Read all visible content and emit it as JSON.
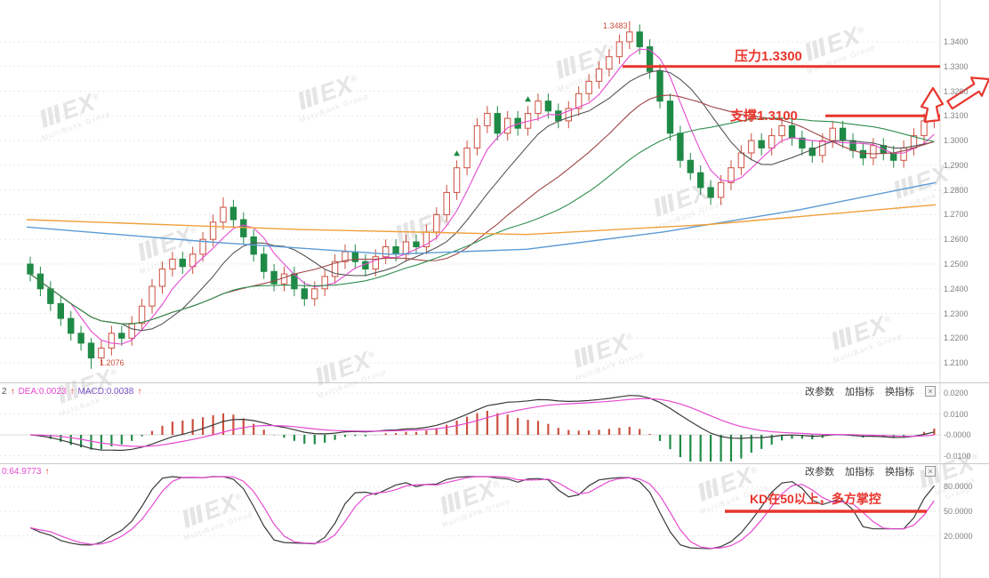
{
  "colors": {
    "up": "#cc4f3f",
    "down": "#1f8a46",
    "annotation": "#e8362e",
    "dif": "#3a3a3a",
    "dea": "#e649d1",
    "hist_pos": "#cc4f3f",
    "hist_neg": "#1f8a46",
    "axis_text": "#808080",
    "grid": "#e8e8e8",
    "button_text": "#3a3a3a"
  },
  "watermark": {
    "logo": "ⅢEX",
    "registered": "®",
    "subtext": "MultiBank Group"
  },
  "ui": {
    "buttons": {
      "change_params": "改参数",
      "add_indicator": "加指标",
      "switch_indicator": "换指标"
    },
    "close_icon": "×",
    "up_arrow": "↑"
  },
  "indicators": {
    "macd": {
      "prefix": "2",
      "dea_label": "DEA:0.0023",
      "macd_label": "MACD:0.0038"
    },
    "kd": {
      "label": "0:64.9773"
    }
  },
  "annotations": {
    "resistance": "压力1.3300",
    "support": "支撑1.3100",
    "kd_note": "KD在50以上，多方掌控",
    "peak": "1.3483",
    "low": "1.2076"
  },
  "chart_data": [
    {
      "type": "candlestick",
      "title": "",
      "ylim": [
        1.2076,
        1.3483
      ],
      "resistance_level": 1.33,
      "support_level": 1.31,
      "price_ticks": [
        "1.3400",
        "1.3300",
        "1.3200",
        "1.3100",
        "1.3000",
        "1.2900",
        "1.2800",
        "1.2700",
        "1.2600",
        "1.2500",
        "1.2400",
        "1.2300",
        "1.2200",
        "1.2100"
      ],
      "candles": [
        [
          1.25,
          1.253,
          1.243,
          1.246
        ],
        [
          1.246,
          1.249,
          1.237,
          1.24
        ],
        [
          1.24,
          1.243,
          1.231,
          1.234
        ],
        [
          1.234,
          1.237,
          1.225,
          1.228
        ],
        [
          1.228,
          1.231,
          1.219,
          1.222
        ],
        [
          1.222,
          1.225,
          1.215,
          1.218
        ],
        [
          1.218,
          1.22,
          1.2076,
          1.212
        ],
        [
          1.212,
          1.219,
          1.209,
          1.216
        ],
        [
          1.216,
          1.225,
          1.213,
          1.222
        ],
        [
          1.222,
          1.225,
          1.217,
          1.22
        ],
        [
          1.22,
          1.229,
          1.217,
          1.226
        ],
        [
          1.226,
          1.236,
          1.223,
          1.233
        ],
        [
          1.233,
          1.244,
          1.23,
          1.241
        ],
        [
          1.241,
          1.251,
          1.238,
          1.248
        ],
        [
          1.248,
          1.255,
          1.245,
          1.252
        ],
        [
          1.252,
          1.255,
          1.246,
          1.249
        ],
        [
          1.249,
          1.257,
          1.246,
          1.254
        ],
        [
          1.254,
          1.263,
          1.251,
          1.26
        ],
        [
          1.26,
          1.27,
          1.257,
          1.267
        ],
        [
          1.267,
          1.277,
          1.264,
          1.273
        ],
        [
          1.273,
          1.276,
          1.265,
          1.268
        ],
        [
          1.268,
          1.271,
          1.258,
          1.261
        ],
        [
          1.261,
          1.264,
          1.251,
          1.254
        ],
        [
          1.254,
          1.257,
          1.244,
          1.247
        ],
        [
          1.247,
          1.25,
          1.239,
          1.242
        ],
        [
          1.242,
          1.249,
          1.239,
          1.246
        ],
        [
          1.246,
          1.249,
          1.237,
          1.24
        ],
        [
          1.24,
          1.243,
          1.233,
          1.236
        ],
        [
          1.236,
          1.243,
          1.233,
          1.24
        ],
        [
          1.24,
          1.248,
          1.237,
          1.245
        ],
        [
          1.245,
          1.254,
          1.242,
          1.251
        ],
        [
          1.251,
          1.258,
          1.248,
          1.255
        ],
        [
          1.255,
          1.258,
          1.248,
          1.251
        ],
        [
          1.251,
          1.254,
          1.245,
          1.248
        ],
        [
          1.248,
          1.256,
          1.245,
          1.253
        ],
        [
          1.253,
          1.26,
          1.25,
          1.257
        ],
        [
          1.257,
          1.26,
          1.251,
          1.254
        ],
        [
          1.254,
          1.262,
          1.251,
          1.259
        ],
        [
          1.259,
          1.262,
          1.254,
          1.257
        ],
        [
          1.257,
          1.266,
          1.254,
          1.263
        ],
        [
          1.263,
          1.273,
          1.26,
          1.27
        ],
        [
          1.27,
          1.282,
          1.267,
          1.279
        ],
        [
          1.279,
          1.292,
          1.276,
          1.289
        ],
        [
          1.289,
          1.3,
          1.286,
          1.297
        ],
        [
          1.297,
          1.309,
          1.294,
          1.306
        ],
        [
          1.306,
          1.314,
          1.303,
          1.311
        ],
        [
          1.311,
          1.314,
          1.3,
          1.303
        ],
        [
          1.303,
          1.312,
          1.3,
          1.309
        ],
        [
          1.309,
          1.312,
          1.302,
          1.305
        ],
        [
          1.305,
          1.314,
          1.302,
          1.311
        ],
        [
          1.311,
          1.319,
          1.308,
          1.316
        ],
        [
          1.316,
          1.319,
          1.309,
          1.312
        ],
        [
          1.312,
          1.315,
          1.305,
          1.308
        ],
        [
          1.308,
          1.316,
          1.305,
          1.313
        ],
        [
          1.313,
          1.322,
          1.31,
          1.319
        ],
        [
          1.319,
          1.327,
          1.316,
          1.324
        ],
        [
          1.324,
          1.332,
          1.321,
          1.329
        ],
        [
          1.329,
          1.337,
          1.326,
          1.334
        ],
        [
          1.334,
          1.343,
          1.331,
          1.34
        ],
        [
          1.34,
          1.3483,
          1.337,
          1.344
        ],
        [
          1.344,
          1.347,
          1.335,
          1.338
        ],
        [
          1.338,
          1.341,
          1.325,
          1.328
        ],
        [
          1.328,
          1.331,
          1.313,
          1.316
        ],
        [
          1.316,
          1.319,
          1.3,
          1.303
        ],
        [
          1.303,
          1.306,
          1.289,
          1.292
        ],
        [
          1.292,
          1.295,
          1.284,
          1.287
        ],
        [
          1.287,
          1.29,
          1.278,
          1.281
        ],
        [
          1.281,
          1.284,
          1.274,
          1.277
        ],
        [
          1.277,
          1.286,
          1.274,
          1.283
        ],
        [
          1.283,
          1.292,
          1.28,
          1.289
        ],
        [
          1.289,
          1.298,
          1.286,
          1.295
        ],
        [
          1.295,
          1.303,
          1.292,
          1.3
        ],
        [
          1.3,
          1.303,
          1.294,
          1.297
        ],
        [
          1.297,
          1.305,
          1.294,
          1.302
        ],
        [
          1.302,
          1.309,
          1.299,
          1.306
        ],
        [
          1.306,
          1.309,
          1.298,
          1.301
        ],
        [
          1.301,
          1.304,
          1.294,
          1.297
        ],
        [
          1.297,
          1.3,
          1.291,
          1.294
        ],
        [
          1.294,
          1.303,
          1.291,
          1.3
        ],
        [
          1.3,
          1.308,
          1.297,
          1.305
        ],
        [
          1.305,
          1.308,
          1.297,
          1.3
        ],
        [
          1.3,
          1.303,
          1.293,
          1.296
        ],
        [
          1.296,
          1.299,
          1.29,
          1.293
        ],
        [
          1.293,
          1.301,
          1.29,
          1.298
        ],
        [
          1.298,
          1.301,
          1.292,
          1.295
        ],
        [
          1.295,
          1.298,
          1.289,
          1.292
        ],
        [
          1.292,
          1.3,
          1.289,
          1.297
        ],
        [
          1.297,
          1.305,
          1.294,
          1.302
        ],
        [
          1.302,
          1.311,
          1.299,
          1.308
        ],
        [
          1.308,
          1.317,
          1.305,
          1.314
        ]
      ],
      "ma_series": [
        {
          "name": "MA5",
          "period": 5,
          "color": "#e649d1"
        },
        {
          "name": "MA10",
          "period": 10,
          "color": "#555555"
        },
        {
          "name": "MA20",
          "period": 20,
          "color": "#9e4545"
        },
        {
          "name": "MA30",
          "period": 30,
          "color": "#2f8f4f"
        }
      ],
      "overlay_lines": [
        {
          "name": "long-ma-blue",
          "color": "#5b9bd5",
          "points": [
            [
              0,
              1.265
            ],
            [
              0.2,
              1.259
            ],
            [
              0.4,
              1.254
            ],
            [
              0.55,
              1.256
            ],
            [
              0.7,
              1.263
            ],
            [
              0.85,
              1.272
            ],
            [
              1,
              1.283
            ]
          ]
        },
        {
          "name": "long-ma-orange",
          "color": "#f0a03c",
          "points": [
            [
              0,
              1.268
            ],
            [
              0.3,
              1.264
            ],
            [
              0.55,
              1.262
            ],
            [
              0.75,
              1.266
            ],
            [
              1,
              1.274
            ]
          ]
        }
      ],
      "markers": [
        {
          "index": 42,
          "type": "up-triangle",
          "color": "#1f8a46"
        },
        {
          "index": 49,
          "type": "up-triangle",
          "color": "#1f8a46"
        }
      ]
    },
    {
      "type": "macd",
      "params": {
        "fast": 12,
        "slow": 26,
        "signal": 9
      },
      "dea_value": 0.0023,
      "macd_value": 0.0038,
      "axis_ticks": [
        "0.0200",
        "0.0100",
        "-0.0000",
        "-0.0100"
      ]
    },
    {
      "type": "stochastic-kd",
      "params": {
        "n": 9
      },
      "d_value": 64.9773,
      "level_line": 50,
      "axis_ticks": [
        "80.0000",
        "50.0000",
        "20.0000"
      ]
    }
  ]
}
